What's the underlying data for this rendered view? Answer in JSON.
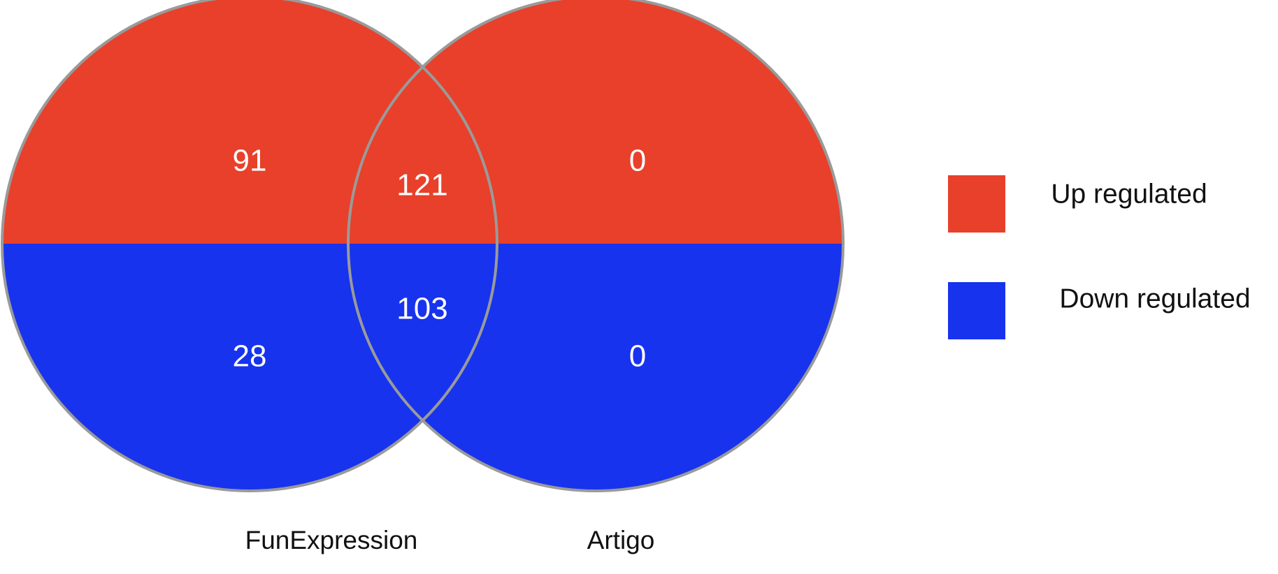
{
  "colors": {
    "up": "#e8402a",
    "down": "#1733ee",
    "outline": "#9a9a9a",
    "count_text": "#ffffff",
    "label_text": "#111111"
  },
  "sets": {
    "left": {
      "name": "FunExpression"
    },
    "right": {
      "name": "Artigo"
    }
  },
  "regions": {
    "left_only": {
      "up": "91",
      "down": "28"
    },
    "intersection": {
      "up": "121",
      "down": "103"
    },
    "right_only": {
      "up": "0",
      "down": "0"
    }
  },
  "legend": {
    "up": {
      "label": "Up regulated"
    },
    "down": {
      "label": "Down regulated"
    }
  }
}
